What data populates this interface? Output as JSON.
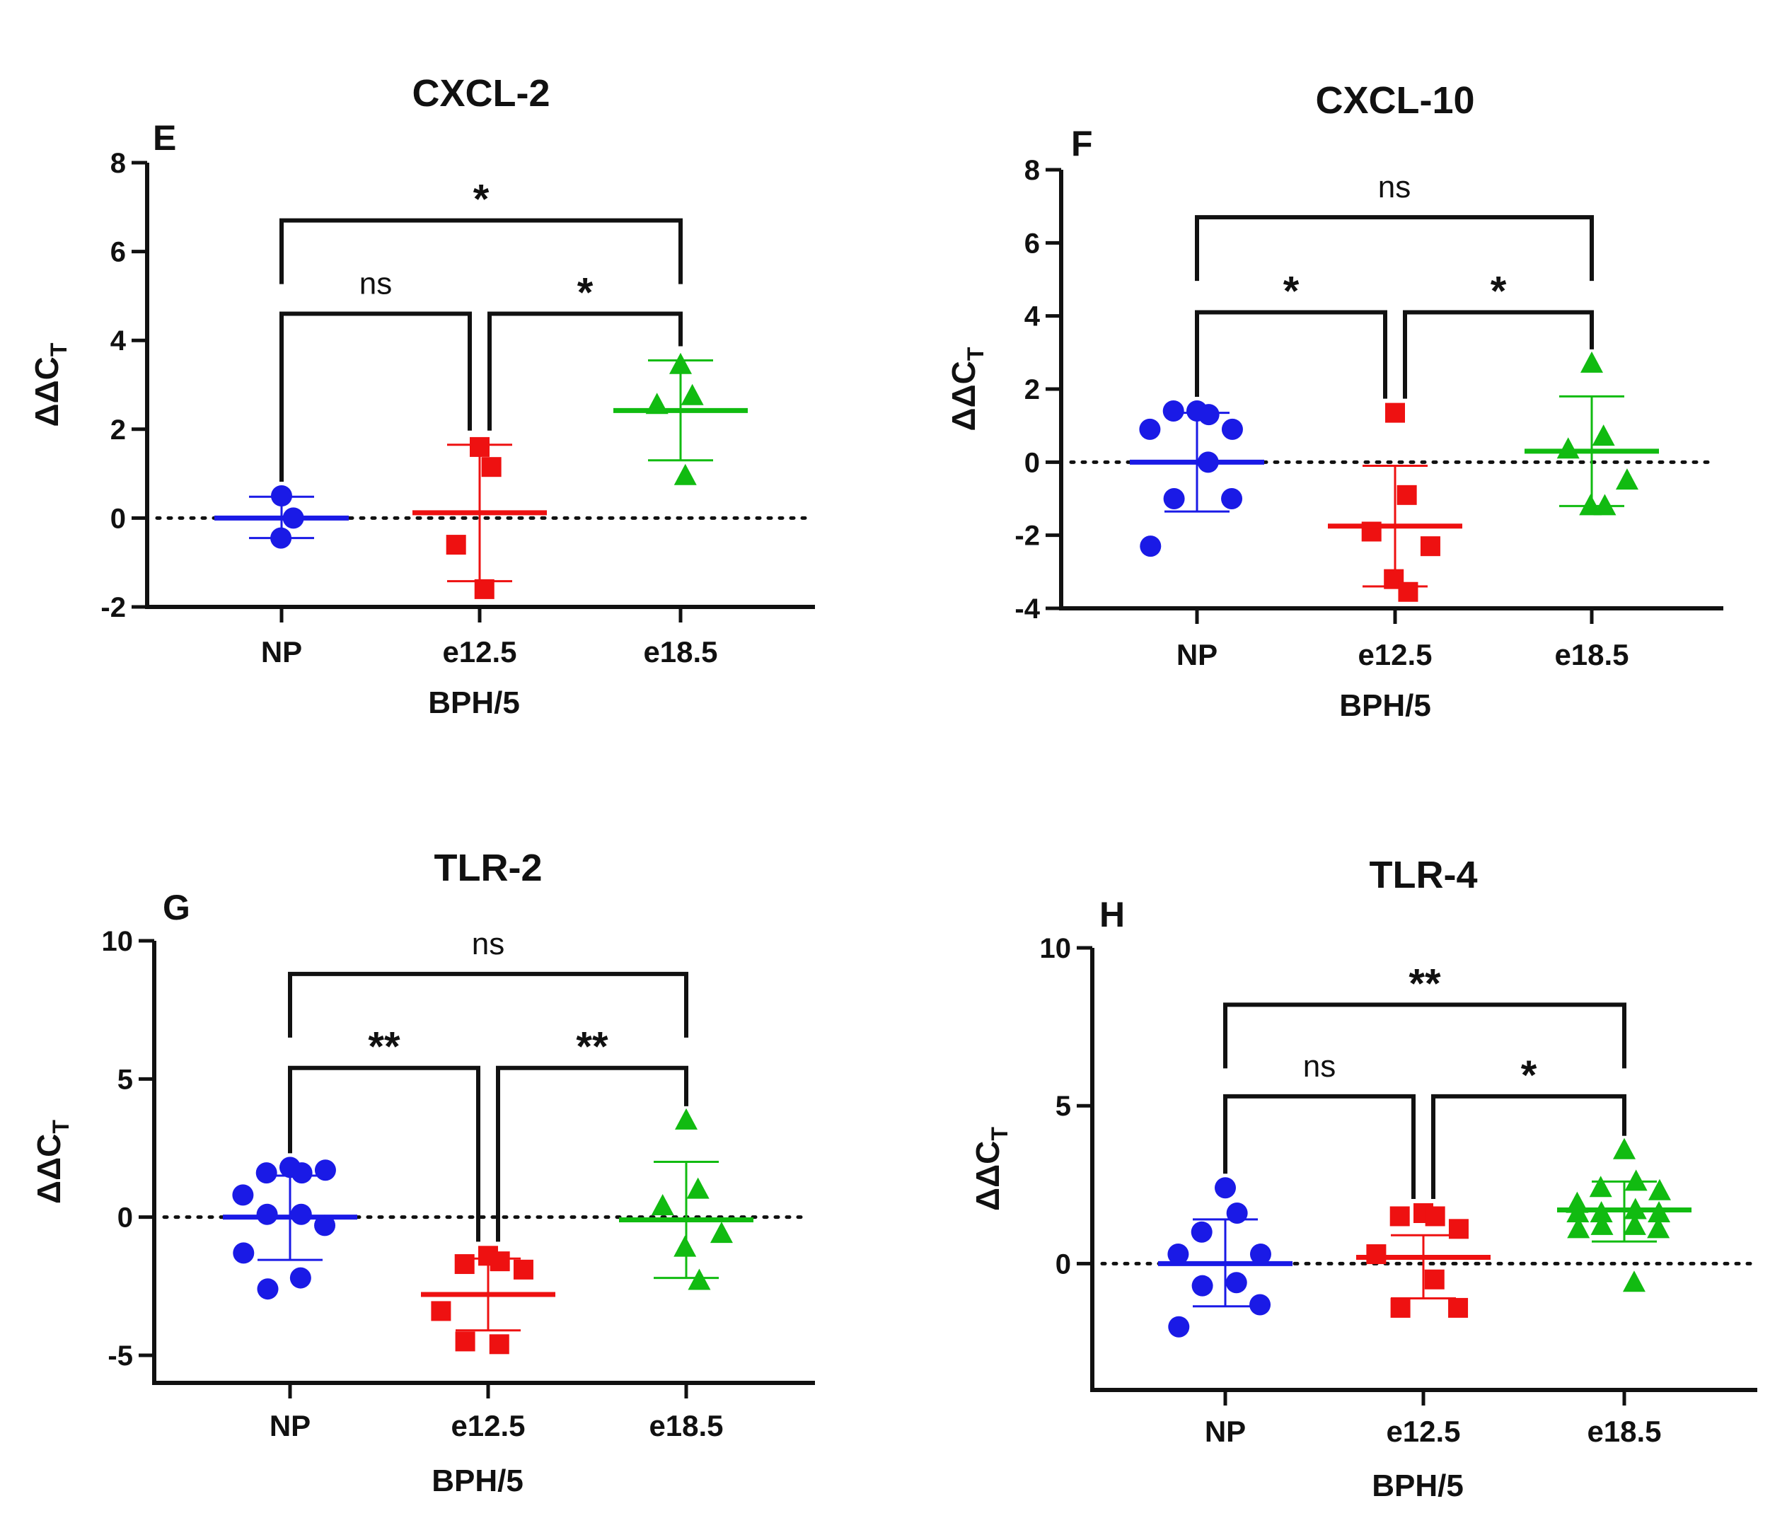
{
  "figure": {
    "background": "#ffffff",
    "group_colors": [
      "#1a1ae6",
      "#ee1111",
      "#11bb11"
    ]
  },
  "chart_data": [
    {
      "type": "scatter",
      "panel": "E",
      "title": "CXCL-2",
      "xlabel": "BPH/5",
      "ylabel": "ΔΔC",
      "ylabel_subscript": "T",
      "ylim": [
        -2,
        8
      ],
      "yticks": [
        -2,
        0,
        2,
        4,
        6,
        8
      ],
      "yticks_text": [
        "-2",
        "0",
        "2",
        "4",
        "6",
        "8"
      ],
      "categories": [
        "NP",
        "e12.5",
        "e18.5"
      ],
      "series": [
        {
          "name": "NP",
          "marker": "circle",
          "color": "#1a1ae6",
          "points": [
            0.5,
            0.0,
            -0.45
          ],
          "mean": 0.0,
          "err_low": -0.45,
          "err_high": 0.48
        },
        {
          "name": "e12.5",
          "marker": "square",
          "color": "#ee1111",
          "points": [
            1.6,
            1.15,
            -0.6,
            -1.6
          ],
          "mean": 0.12,
          "err_low": -1.42,
          "err_high": 1.65
        },
        {
          "name": "e18.5",
          "marker": "triangle",
          "color": "#11bb11",
          "points": [
            3.45,
            2.75,
            2.55,
            0.95
          ],
          "mean": 2.42,
          "err_low": 1.3,
          "err_high": 3.55
        }
      ],
      "reference_line": 0,
      "brackets": [
        {
          "from": 0,
          "to": 1,
          "y": 4.6,
          "label": "ns"
        },
        {
          "from": 1,
          "to": 2,
          "y": 4.6,
          "label": "*"
        },
        {
          "from": 0,
          "to": 2,
          "y": 6.7,
          "label": "*"
        }
      ]
    },
    {
      "type": "scatter",
      "panel": "F",
      "title": "CXCL-10",
      "xlabel": "BPH/5",
      "ylabel": "ΔΔC",
      "ylabel_subscript": "T",
      "ylim": [
        -4,
        8
      ],
      "yticks": [
        -4,
        -2,
        0,
        2,
        4,
        6,
        8
      ],
      "yticks_text": [
        "-4",
        "-2",
        "0",
        "2",
        "4",
        "6",
        "8"
      ],
      "categories": [
        "NP",
        "e12.5",
        "e18.5"
      ],
      "series": [
        {
          "name": "NP",
          "marker": "circle",
          "color": "#1a1ae6",
          "points": [
            1.4,
            1.3,
            1.4,
            0.9,
            0.9,
            0.0,
            -1.0,
            -1.0,
            -2.3
          ],
          "mean": 0.0,
          "err_low": -1.35,
          "err_high": 1.35
        },
        {
          "name": "e12.5",
          "marker": "square",
          "color": "#ee1111",
          "points": [
            1.35,
            -0.9,
            -1.9,
            -2.3,
            -3.2,
            -3.55
          ],
          "mean": -1.75,
          "err_low": -3.4,
          "err_high": -0.1
        },
        {
          "name": "e18.5",
          "marker": "triangle",
          "color": "#11bb11",
          "points": [
            2.7,
            0.7,
            0.35,
            -0.5,
            -1.2,
            -1.2
          ],
          "mean": 0.3,
          "err_low": -1.2,
          "err_high": 1.8
        }
      ],
      "reference_line": 0,
      "brackets": [
        {
          "from": 0,
          "to": 1,
          "y": 4.1,
          "label": "*"
        },
        {
          "from": 1,
          "to": 2,
          "y": 4.1,
          "label": "*"
        },
        {
          "from": 0,
          "to": 2,
          "y": 6.7,
          "label": "ns"
        }
      ]
    },
    {
      "type": "scatter",
      "panel": "G",
      "title": "TLR-2",
      "xlabel": "BPH/5",
      "ylabel": "ΔΔC",
      "ylabel_subscript": "T",
      "ylim": [
        -6,
        10
      ],
      "yticks": [
        -5,
        0,
        5,
        10
      ],
      "yticks_text": [
        "-5",
        "0",
        "5",
        "10"
      ],
      "categories": [
        "NP",
        "e12.5",
        "e18.5"
      ],
      "series": [
        {
          "name": "NP",
          "marker": "circle",
          "color": "#1a1ae6",
          "points": [
            1.8,
            1.6,
            1.6,
            1.7,
            0.8,
            0.1,
            0.1,
            -0.3,
            -1.3,
            -2.2,
            -2.6
          ],
          "mean": 0.0,
          "err_low": -1.55,
          "err_high": 1.5
        },
        {
          "name": "e12.5",
          "marker": "square",
          "color": "#ee1111",
          "points": [
            -1.4,
            -1.6,
            -1.7,
            -1.9,
            -3.4,
            -4.6,
            -4.5
          ],
          "mean": -2.8,
          "err_low": -4.1,
          "err_high": -1.5
        },
        {
          "name": "e18.5",
          "marker": "triangle",
          "color": "#11bb11",
          "points": [
            3.5,
            1.0,
            0.4,
            -0.6,
            -1.1,
            -2.3
          ],
          "mean": -0.1,
          "err_low": -2.2,
          "err_high": 2.0
        }
      ],
      "reference_line": 0,
      "brackets": [
        {
          "from": 0,
          "to": 1,
          "y": 5.4,
          "label": "**"
        },
        {
          "from": 1,
          "to": 2,
          "y": 5.4,
          "label": "**"
        },
        {
          "from": 0,
          "to": 2,
          "y": 8.8,
          "label": "ns"
        }
      ]
    },
    {
      "type": "scatter",
      "panel": "H",
      "title": "TLR-4",
      "xlabel": "BPH/5",
      "ylabel": "ΔΔC",
      "ylabel_subscript": "T",
      "ylim": [
        -4,
        10
      ],
      "yticks": [
        0,
        5,
        10
      ],
      "yticks_text": [
        "0",
        "5",
        "10"
      ],
      "categories": [
        "NP",
        "e12.5",
        "e18.5"
      ],
      "series": [
        {
          "name": "NP",
          "marker": "circle",
          "color": "#1a1ae6",
          "points": [
            2.4,
            1.6,
            1.0,
            0.3,
            0.3,
            -0.6,
            -0.7,
            -1.3,
            -2.0
          ],
          "mean": 0.0,
          "err_low": -1.35,
          "err_high": 1.4
        },
        {
          "name": "e12.5",
          "marker": "square",
          "color": "#ee1111",
          "points": [
            1.6,
            1.5,
            1.5,
            1.1,
            0.3,
            -0.5,
            -1.4,
            -1.4
          ],
          "mean": 0.2,
          "err_low": -1.1,
          "err_high": 0.9
        },
        {
          "name": "e18.5",
          "marker": "triangle",
          "color": "#11bb11",
          "points": [
            3.6,
            2.6,
            2.4,
            2.3,
            1.9,
            1.7,
            1.6,
            1.6,
            1.6,
            1.2,
            1.2,
            1.1,
            1.1,
            -0.6
          ],
          "mean": 1.7,
          "err_low": 0.7,
          "err_high": 2.6
        }
      ],
      "reference_line": 0,
      "brackets": [
        {
          "from": 0,
          "to": 1,
          "y": 5.3,
          "label": "ns"
        },
        {
          "from": 1,
          "to": 2,
          "y": 5.3,
          "label": "*"
        },
        {
          "from": 0,
          "to": 2,
          "y": 8.2,
          "label": "**"
        }
      ]
    }
  ]
}
